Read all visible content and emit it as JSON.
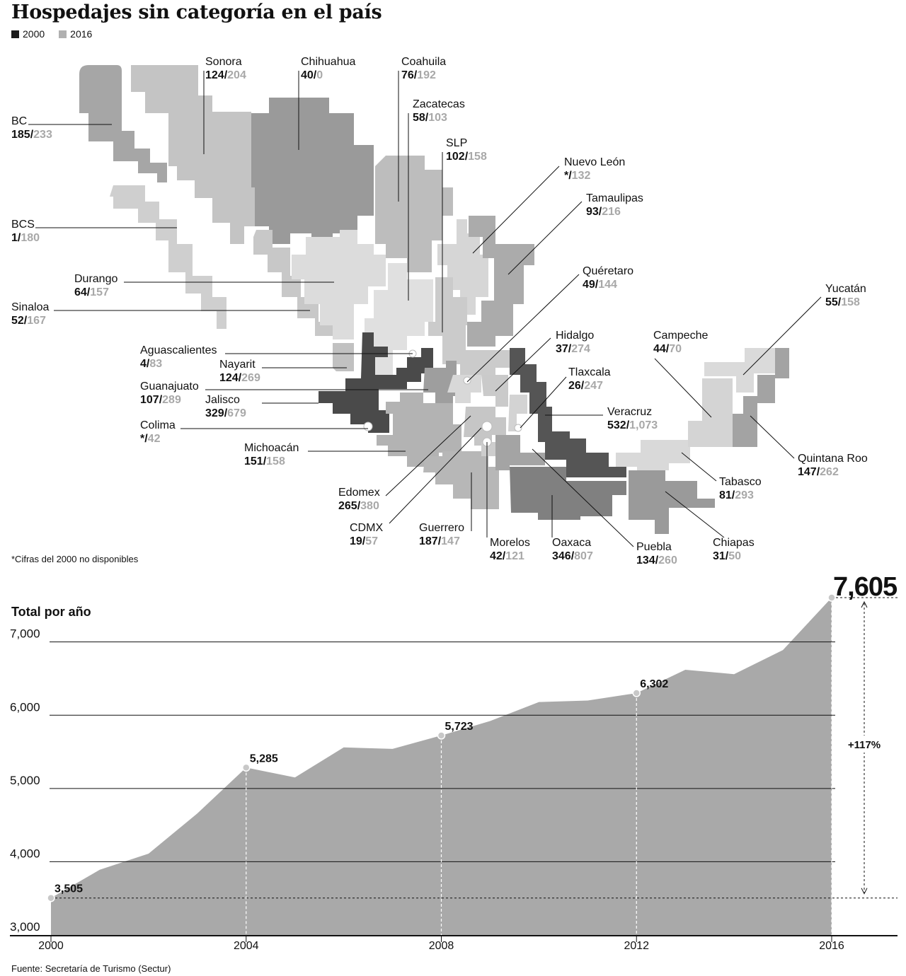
{
  "title": "Hospedajes sin categoría en el país",
  "legend": [
    {
      "label": "2000",
      "color": "#1a1a1a"
    },
    {
      "label": "2016",
      "color": "#b0b0b0"
    }
  ],
  "map_note": "*Cifras del 2000 no disponibles",
  "states": [
    {
      "name": "Sonora",
      "v2000": "124",
      "v2016": "204"
    },
    {
      "name": "Chihuahua",
      "v2000": "40",
      "v2016": "0"
    },
    {
      "name": "Coahuila",
      "v2000": "76",
      "v2016": "192"
    },
    {
      "name": "Zacatecas",
      "v2000": "58",
      "v2016": "103"
    },
    {
      "name": "SLP",
      "v2000": "102",
      "v2016": "158"
    },
    {
      "name": "Nuevo León",
      "v2000": "*",
      "v2016": "132"
    },
    {
      "name": "Tamaulipas",
      "v2000": "93",
      "v2016": "216"
    },
    {
      "name": "BC",
      "v2000": "185",
      "v2016": "233"
    },
    {
      "name": "BCS",
      "v2000": "1",
      "v2016": "180"
    },
    {
      "name": "Durango",
      "v2000": "64",
      "v2016": "157"
    },
    {
      "name": "Sinaloa",
      "v2000": "52",
      "v2016": "167"
    },
    {
      "name": "Quéretaro",
      "v2000": "49",
      "v2016": "144"
    },
    {
      "name": "Yucatán",
      "v2000": "55",
      "v2016": "158"
    },
    {
      "name": "Hidalgo",
      "v2000": "37",
      "v2016": "274"
    },
    {
      "name": "Campeche",
      "v2000": "44",
      "v2016": "70"
    },
    {
      "name": "Aguascalientes",
      "v2000": "4",
      "v2016": "83"
    },
    {
      "name": "Nayarit",
      "v2000": "124",
      "v2016": "269"
    },
    {
      "name": "Tlaxcala",
      "v2000": "26",
      "v2016": "247"
    },
    {
      "name": "Guanajuato",
      "v2000": "107",
      "v2016": "289"
    },
    {
      "name": "Jalisco",
      "v2000": "329",
      "v2016": "679"
    },
    {
      "name": "Veracruz",
      "v2000": "532",
      "v2016": "1,073"
    },
    {
      "name": "Colima",
      "v2000": "*",
      "v2016": "42"
    },
    {
      "name": "Michoacán",
      "v2000": "151",
      "v2016": "158"
    },
    {
      "name": "Quintana Roo",
      "v2000": "147",
      "v2016": "262"
    },
    {
      "name": "Tabasco",
      "v2000": "81",
      "v2016": "293"
    },
    {
      "name": "Edomex",
      "v2000": "265",
      "v2016": "380"
    },
    {
      "name": "CDMX",
      "v2000": "19",
      "v2016": "57"
    },
    {
      "name": "Guerrero",
      "v2000": "187",
      "v2016": "147"
    },
    {
      "name": "Morelos",
      "v2000": "42",
      "v2016": "121"
    },
    {
      "name": "Oaxaca",
      "v2000": "346",
      "v2016": "807"
    },
    {
      "name": "Puebla",
      "v2000": "134",
      "v2016": "260"
    },
    {
      "name": "Chiapas",
      "v2000": "31",
      "v2016": "50"
    }
  ],
  "chart_data": {
    "type": "area",
    "title": "Total por año",
    "x": [
      2000,
      2001,
      2002,
      2003,
      2004,
      2005,
      2006,
      2007,
      2008,
      2009,
      2010,
      2011,
      2012,
      2013,
      2014,
      2015,
      2016
    ],
    "values": [
      3505,
      3890,
      4110,
      4660,
      5285,
      5150,
      5560,
      5540,
      5723,
      5920,
      6180,
      6200,
      6302,
      6620,
      6560,
      6890,
      7605
    ],
    "highlighted": [
      {
        "x": 2000,
        "label": "3,505"
      },
      {
        "x": 2004,
        "label": "5,285"
      },
      {
        "x": 2008,
        "label": "5,723"
      },
      {
        "x": 2012,
        "label": "6,302"
      },
      {
        "x": 2016,
        "label": "7,605"
      }
    ],
    "x_ticks": [
      "2000",
      "2004",
      "2008",
      "2012",
      "2016"
    ],
    "y_ticks": [
      "3,000",
      "4,000",
      "5,000",
      "6,000",
      "7,000"
    ],
    "ylim": [
      3000,
      7605
    ],
    "change_label": "+117%",
    "colors": {
      "area": "#a9a9a9",
      "axis": "#111111"
    }
  },
  "source": "Fuente: Secretaría de Turismo (Sectur)"
}
